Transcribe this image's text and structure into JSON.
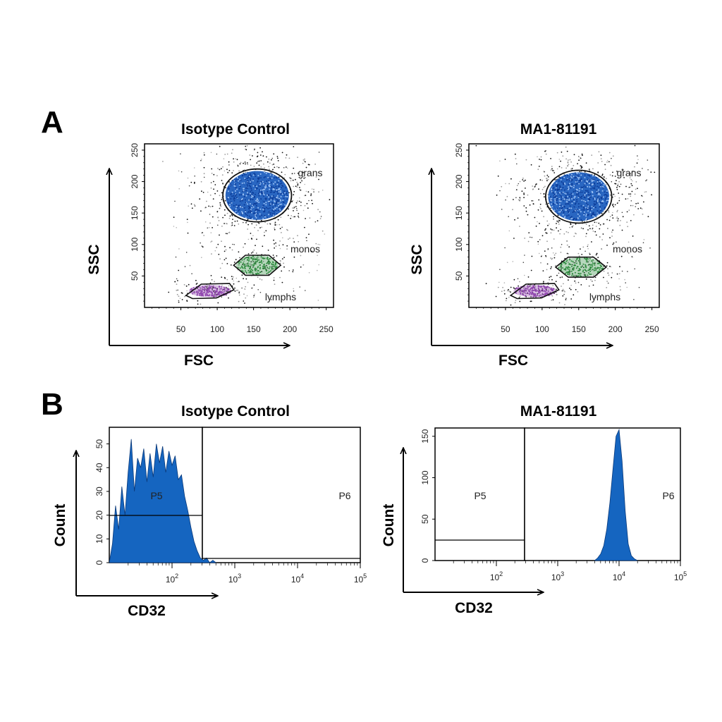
{
  "figure": {
    "panel_letters": [
      "A",
      "B"
    ]
  },
  "chart_data": [
    {
      "type": "scatter",
      "title": "Isotype Control",
      "xlabel": "FSC",
      "ylabel": "SSC",
      "x_ticks": [
        "50",
        "100",
        "150",
        "200",
        "250"
      ],
      "y_ticks": [
        "50",
        "100",
        "150",
        "200",
        "250"
      ],
      "xlim": [
        0,
        260
      ],
      "ylim": [
        0,
        260
      ],
      "gates": [
        {
          "name": "grans",
          "center": [
            155,
            178
          ],
          "radius": [
            45,
            40
          ],
          "color": "#1f5fbf"
        },
        {
          "name": "monos",
          "center": [
            155,
            67
          ],
          "radius": [
            30,
            16
          ],
          "color": "#2e8b3e"
        },
        {
          "name": "lymphs",
          "center": [
            90,
            26
          ],
          "radius": [
            30,
            10
          ],
          "color": "#8e44ad"
        }
      ]
    },
    {
      "type": "scatter",
      "title": "MA1-81191",
      "xlabel": "FSC",
      "ylabel": "SSC",
      "x_ticks": [
        "50",
        "100",
        "150",
        "200",
        "250"
      ],
      "y_ticks": [
        "50",
        "100",
        "150",
        "200",
        "250"
      ],
      "xlim": [
        0,
        260
      ],
      "ylim": [
        0,
        260
      ],
      "gates": [
        {
          "name": "grans",
          "center": [
            150,
            176
          ],
          "radius": [
            43,
            40
          ],
          "color": "#1f5fbf"
        },
        {
          "name": "monos",
          "center": [
            153,
            64
          ],
          "radius": [
            32,
            16
          ],
          "color": "#2e8b3e"
        },
        {
          "name": "lymphs",
          "center": [
            90,
            26
          ],
          "radius": [
            30,
            10
          ],
          "color": "#8e44ad"
        }
      ]
    },
    {
      "type": "area",
      "title": "Isotype Control",
      "xlabel": "CD32",
      "ylabel": "Count",
      "xscale": "log",
      "xlim": [
        1,
        5
      ],
      "ylim": [
        0,
        57
      ],
      "x_ticks": [
        {
          "base": "10",
          "exp": "2"
        },
        {
          "base": "10",
          "exp": "3"
        },
        {
          "base": "10",
          "exp": "4"
        },
        {
          "base": "10",
          "exp": "5"
        }
      ],
      "y_ticks": [
        "0",
        "10",
        "20",
        "30",
        "40",
        "50"
      ],
      "gates": [
        {
          "name": "P5"
        },
        {
          "name": "P6"
        }
      ],
      "color": "#1565c0",
      "series": [
        {
          "x": [
            1.0,
            1.05,
            1.1,
            1.15,
            1.2,
            1.25,
            1.3,
            1.35,
            1.4,
            1.45,
            1.5,
            1.55,
            1.6,
            1.65,
            1.7,
            1.75,
            1.8,
            1.85,
            1.9,
            1.95,
            2.0,
            2.05,
            2.1,
            2.15,
            2.2,
            2.25,
            2.3,
            2.35,
            2.4,
            2.45,
            2.5,
            2.55,
            2.6,
            2.65,
            2.7
          ],
          "values": [
            0,
            8,
            24,
            14,
            32,
            20,
            38,
            52,
            30,
            44,
            40,
            48,
            34,
            46,
            36,
            50,
            42,
            49,
            38,
            47,
            41,
            45,
            35,
            37,
            28,
            22,
            15,
            9,
            5,
            2,
            1,
            2,
            0,
            1,
            0
          ]
        }
      ]
    },
    {
      "type": "area",
      "title": "MA1-81191",
      "xlabel": "CD32",
      "ylabel": "Count",
      "xscale": "log",
      "xlim": [
        1,
        5
      ],
      "ylim": [
        0,
        160
      ],
      "x_ticks": [
        {
          "base": "10",
          "exp": "2"
        },
        {
          "base": "10",
          "exp": "3"
        },
        {
          "base": "10",
          "exp": "4"
        },
        {
          "base": "10",
          "exp": "5"
        }
      ],
      "y_ticks": [
        "0",
        "50",
        "100",
        "150"
      ],
      "gates": [
        {
          "name": "P5"
        },
        {
          "name": "P6"
        }
      ],
      "color": "#1565c0",
      "series": [
        {
          "x": [
            3.6,
            3.65,
            3.7,
            3.75,
            3.8,
            3.85,
            3.9,
            3.95,
            4.0,
            4.05,
            4.1,
            4.15,
            4.2,
            4.25,
            4.3
          ],
          "values": [
            0,
            3,
            8,
            18,
            38,
            70,
            110,
            150,
            158,
            120,
            60,
            20,
            6,
            2,
            0
          ]
        }
      ]
    }
  ]
}
